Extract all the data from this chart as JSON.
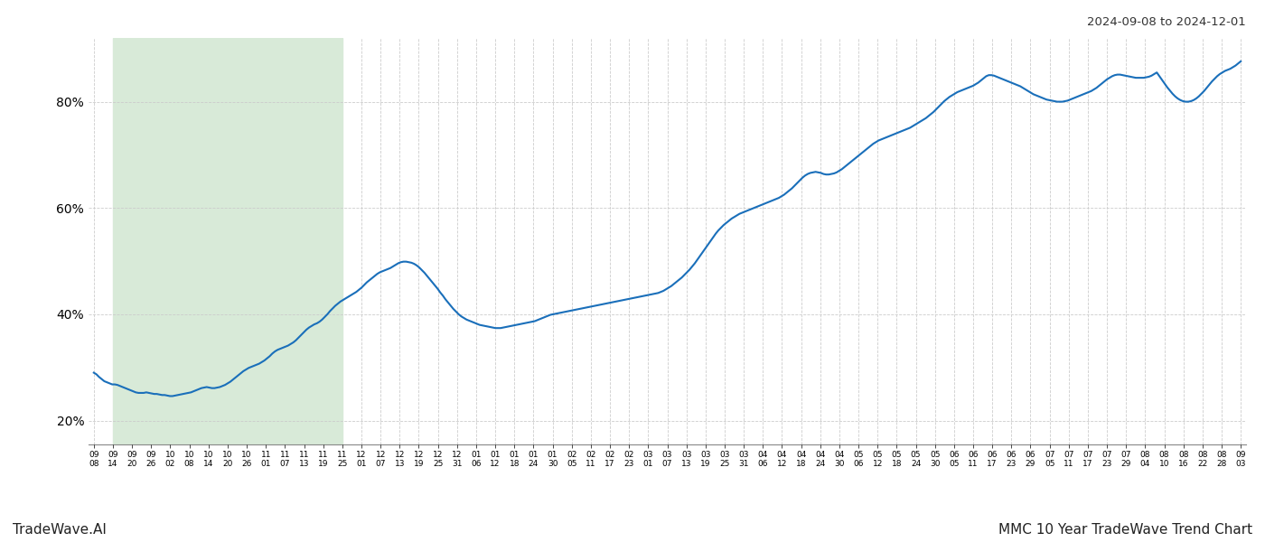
{
  "title_top_right": "2024-09-08 to 2024-12-01",
  "bottom_left": "TradeWave.AI",
  "bottom_right": "MMC 10 Year TradeWave Trend Chart",
  "highlight_color": "#d8ead8",
  "line_color": "#1a6fba",
  "line_width": 1.5,
  "ylim": [
    0.155,
    0.92
  ],
  "yticks": [
    0.2,
    0.4,
    0.6,
    0.8
  ],
  "background_color": "#ffffff",
  "grid_color": "#cccccc",
  "x_labels": [
    "09-08",
    "09-14",
    "09-20",
    "09-26",
    "10-02",
    "10-08",
    "10-14",
    "10-20",
    "10-26",
    "11-01",
    "11-07",
    "11-13",
    "11-19",
    "11-25",
    "12-01",
    "12-07",
    "12-13",
    "12-19",
    "12-25",
    "12-31",
    "01-06",
    "01-12",
    "01-18",
    "01-24",
    "01-30",
    "02-05",
    "02-11",
    "02-17",
    "02-23",
    "03-01",
    "03-07",
    "03-13",
    "03-19",
    "03-25",
    "03-31",
    "04-06",
    "04-12",
    "04-18",
    "04-24",
    "04-30",
    "05-06",
    "05-12",
    "05-18",
    "05-24",
    "05-30",
    "06-05",
    "06-11",
    "06-17",
    "06-23",
    "06-29",
    "07-05",
    "07-11",
    "07-17",
    "07-23",
    "07-29",
    "08-04",
    "08-10",
    "08-16",
    "08-22",
    "08-28",
    "09-03"
  ],
  "highlight_start_label": "09-14",
  "highlight_end_label": "11-25",
  "values": [
    0.29,
    0.287,
    0.282,
    0.278,
    0.274,
    0.272,
    0.27,
    0.268,
    0.268,
    0.267,
    0.265,
    0.263,
    0.261,
    0.259,
    0.257,
    0.255,
    0.253,
    0.252,
    0.252,
    0.252,
    0.253,
    0.252,
    0.251,
    0.25,
    0.25,
    0.249,
    0.248,
    0.248,
    0.247,
    0.246,
    0.246,
    0.247,
    0.248,
    0.249,
    0.25,
    0.251,
    0.252,
    0.253,
    0.255,
    0.257,
    0.259,
    0.261,
    0.262,
    0.263,
    0.262,
    0.261,
    0.261,
    0.262,
    0.263,
    0.265,
    0.267,
    0.27,
    0.273,
    0.277,
    0.281,
    0.285,
    0.289,
    0.293,
    0.296,
    0.299,
    0.301,
    0.303,
    0.305,
    0.307,
    0.31,
    0.313,
    0.317,
    0.321,
    0.326,
    0.33,
    0.333,
    0.335,
    0.337,
    0.339,
    0.341,
    0.344,
    0.347,
    0.351,
    0.356,
    0.361,
    0.366,
    0.371,
    0.375,
    0.378,
    0.381,
    0.383,
    0.386,
    0.39,
    0.395,
    0.4,
    0.406,
    0.411,
    0.416,
    0.42,
    0.424,
    0.427,
    0.43,
    0.433,
    0.436,
    0.439,
    0.442,
    0.446,
    0.45,
    0.455,
    0.46,
    0.464,
    0.468,
    0.472,
    0.476,
    0.479,
    0.481,
    0.483,
    0.485,
    0.487,
    0.49,
    0.493,
    0.496,
    0.498,
    0.499,
    0.499,
    0.498,
    0.497,
    0.495,
    0.492,
    0.488,
    0.483,
    0.478,
    0.472,
    0.466,
    0.46,
    0.454,
    0.448,
    0.441,
    0.435,
    0.428,
    0.422,
    0.416,
    0.41,
    0.405,
    0.4,
    0.396,
    0.393,
    0.39,
    0.388,
    0.386,
    0.384,
    0.382,
    0.38,
    0.379,
    0.378,
    0.377,
    0.376,
    0.375,
    0.374,
    0.374,
    0.374,
    0.375,
    0.376,
    0.377,
    0.378,
    0.379,
    0.38,
    0.381,
    0.382,
    0.383,
    0.384,
    0.385,
    0.386,
    0.387,
    0.389,
    0.391,
    0.393,
    0.395,
    0.397,
    0.399,
    0.4,
    0.401,
    0.402,
    0.403,
    0.404,
    0.405,
    0.406,
    0.407,
    0.408,
    0.409,
    0.41,
    0.411,
    0.412,
    0.413,
    0.414,
    0.415,
    0.416,
    0.417,
    0.418,
    0.419,
    0.42,
    0.421,
    0.422,
    0.423,
    0.424,
    0.425,
    0.426,
    0.427,
    0.428,
    0.429,
    0.43,
    0.431,
    0.432,
    0.433,
    0.434,
    0.435,
    0.436,
    0.437,
    0.438,
    0.439,
    0.44,
    0.442,
    0.444,
    0.447,
    0.45,
    0.453,
    0.457,
    0.461,
    0.465,
    0.469,
    0.474,
    0.479,
    0.484,
    0.49,
    0.496,
    0.503,
    0.51,
    0.517,
    0.524,
    0.531,
    0.538,
    0.545,
    0.552,
    0.558,
    0.563,
    0.568,
    0.572,
    0.576,
    0.58,
    0.583,
    0.586,
    0.589,
    0.591,
    0.593,
    0.595,
    0.597,
    0.599,
    0.601,
    0.603,
    0.605,
    0.607,
    0.609,
    0.611,
    0.613,
    0.615,
    0.617,
    0.619,
    0.622,
    0.625,
    0.629,
    0.633,
    0.637,
    0.642,
    0.647,
    0.652,
    0.657,
    0.661,
    0.664,
    0.666,
    0.667,
    0.668,
    0.667,
    0.666,
    0.664,
    0.663,
    0.663,
    0.664,
    0.665,
    0.667,
    0.67,
    0.673,
    0.677,
    0.681,
    0.685,
    0.689,
    0.693,
    0.697,
    0.701,
    0.705,
    0.709,
    0.713,
    0.717,
    0.721,
    0.724,
    0.727,
    0.729,
    0.731,
    0.733,
    0.735,
    0.737,
    0.739,
    0.741,
    0.743,
    0.745,
    0.747,
    0.749,
    0.751,
    0.754,
    0.757,
    0.76,
    0.763,
    0.766,
    0.769,
    0.773,
    0.777,
    0.781,
    0.786,
    0.791,
    0.796,
    0.801,
    0.805,
    0.809,
    0.812,
    0.815,
    0.818,
    0.82,
    0.822,
    0.824,
    0.826,
    0.828,
    0.83,
    0.833,
    0.836,
    0.84,
    0.844,
    0.848,
    0.85,
    0.85,
    0.849,
    0.847,
    0.845,
    0.843,
    0.841,
    0.839,
    0.837,
    0.835,
    0.833,
    0.831,
    0.829,
    0.826,
    0.823,
    0.82,
    0.817,
    0.814,
    0.812,
    0.81,
    0.808,
    0.806,
    0.804,
    0.803,
    0.802,
    0.801,
    0.8,
    0.8,
    0.8,
    0.801,
    0.802,
    0.804,
    0.806,
    0.808,
    0.81,
    0.812,
    0.814,
    0.816,
    0.818,
    0.82,
    0.823,
    0.826,
    0.83,
    0.834,
    0.838,
    0.842,
    0.845,
    0.848,
    0.85,
    0.851,
    0.851,
    0.85,
    0.849,
    0.848,
    0.847,
    0.846,
    0.845,
    0.845,
    0.845,
    0.845,
    0.846,
    0.847,
    0.849,
    0.852,
    0.855,
    0.848,
    0.841,
    0.834,
    0.827,
    0.821,
    0.815,
    0.81,
    0.806,
    0.803,
    0.801,
    0.8,
    0.8,
    0.801,
    0.803,
    0.806,
    0.81,
    0.815,
    0.82,
    0.826,
    0.832,
    0.838,
    0.843,
    0.848,
    0.852,
    0.855,
    0.858,
    0.86,
    0.862,
    0.865,
    0.868,
    0.872,
    0.876
  ]
}
